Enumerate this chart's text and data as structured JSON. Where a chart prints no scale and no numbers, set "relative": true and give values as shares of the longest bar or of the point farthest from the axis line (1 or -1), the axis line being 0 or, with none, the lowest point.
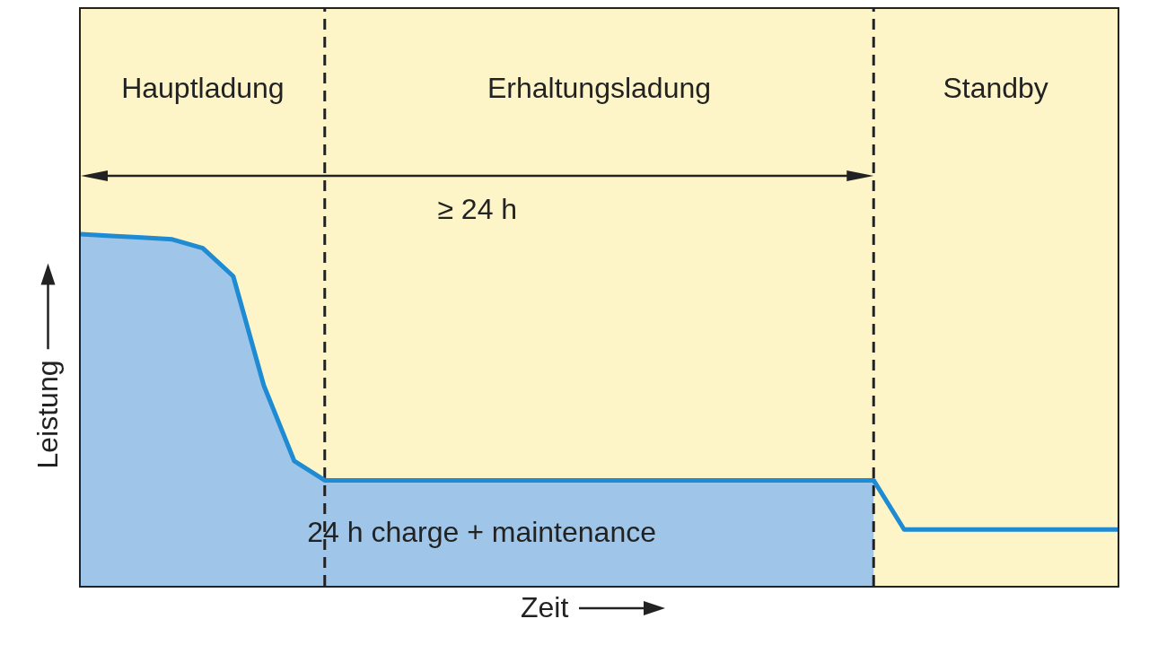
{
  "chart_data": {
    "type": "area",
    "relative": true,
    "xlabel": "Zeit",
    "ylabel": "Leistung",
    "categories": [
      null,
      null,
      null,
      null,
      null,
      null,
      null,
      null,
      null,
      null,
      null,
      null,
      null,
      null,
      null,
      null,
      null,
      null,
      null,
      null,
      null,
      null,
      null,
      null,
      null,
      null,
      null,
      null,
      null,
      null,
      null,
      null,
      null,
      null,
      null
    ],
    "series": [
      {
        "color": "#9fc5e8",
        "values": [
          1.0,
          0.995,
          0.99,
          0.985,
          0.96,
          0.88,
          0.57,
          0.355,
          0.3,
          0.3,
          0.3,
          0.3,
          0.3,
          0.3,
          0.3,
          0.3,
          0.3,
          0.3,
          0.3,
          0.3,
          0.3,
          0.3,
          0.3,
          0.3,
          0.3,
          0.3,
          0.3,
          null,
          null,
          null,
          null,
          null,
          null,
          null,
          null
        ]
      },
      {
        "type": "line",
        "color": "#1e8bd3",
        "values": [
          1.0,
          0.995,
          0.99,
          0.985,
          0.96,
          0.88,
          0.57,
          0.355,
          0.3,
          0.3,
          0.3,
          0.3,
          0.3,
          0.3,
          0.3,
          0.3,
          0.3,
          0.3,
          0.3,
          0.3,
          0.3,
          0.3,
          0.3,
          0.3,
          0.3,
          0.3,
          0.3,
          0.16,
          0.16,
          0.16,
          0.16,
          0.16,
          0.16,
          0.16,
          0.16
        ]
      }
    ],
    "annotations": [
      "Hauptladung",
      "Erhaltungsladung",
      "Standby",
      "≥ 24 h",
      "24 h charge + maintenance"
    ]
  }
}
